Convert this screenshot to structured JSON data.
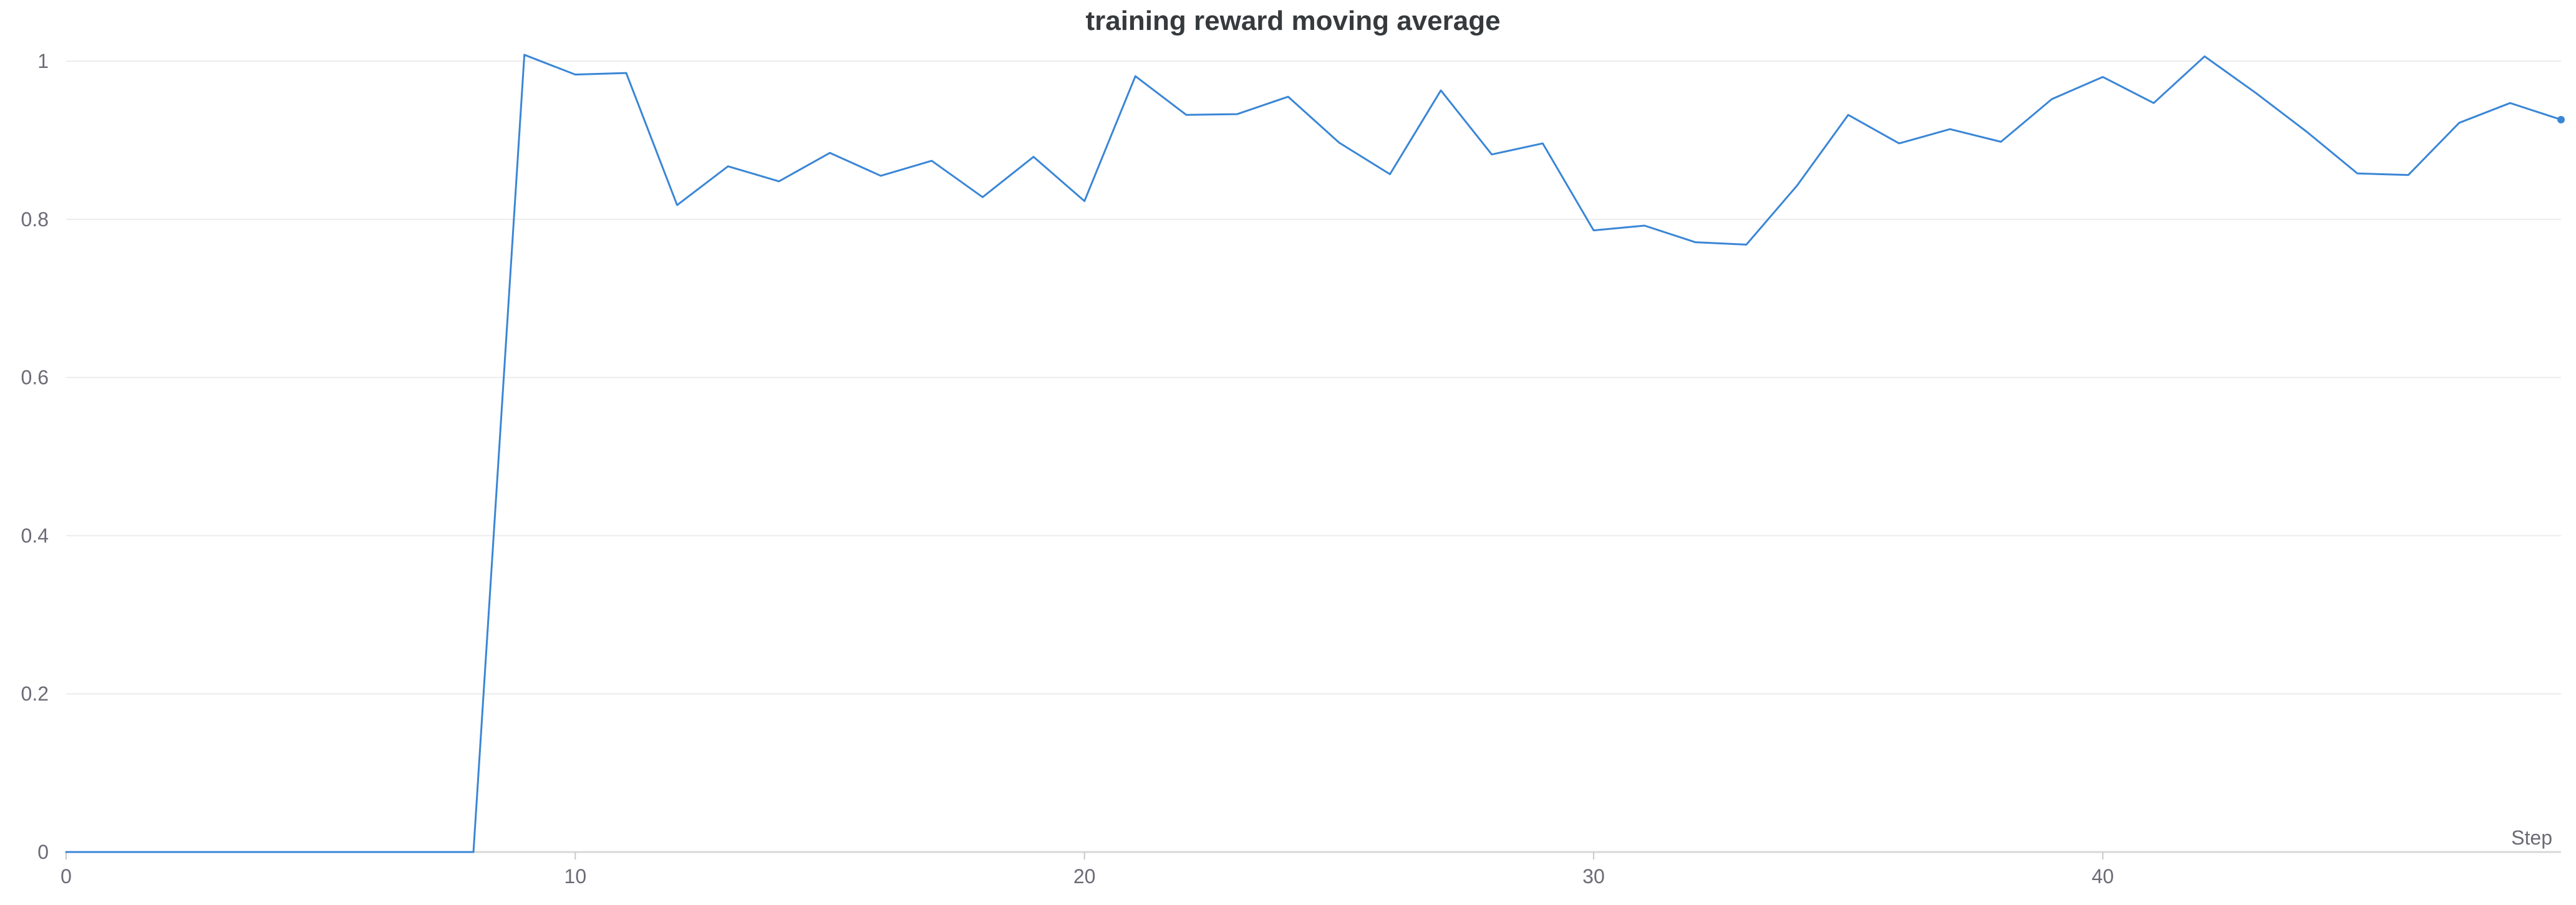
{
  "chart_data": {
    "type": "line",
    "title": "training reward moving average",
    "xlabel": "Step",
    "ylabel": "",
    "xlim": [
      0,
      49
    ],
    "ylim": [
      0,
      1.03
    ],
    "xticks": [
      0,
      10,
      20,
      30,
      40
    ],
    "yticks": [
      0,
      0.2,
      0.4,
      0.6,
      0.8,
      1
    ],
    "ytick_labels": [
      "0",
      "0.2",
      "0.4",
      "0.6",
      "0.8",
      "1"
    ],
    "grid": true,
    "legend": "none",
    "series": [
      {
        "color": "#3a86d6",
        "x": [
          0,
          1,
          2,
          3,
          4,
          5,
          6,
          7,
          8,
          9,
          10,
          11,
          12,
          13,
          14,
          15,
          16,
          17,
          18,
          19,
          20,
          21,
          22,
          23,
          24,
          25,
          26,
          27,
          28,
          29,
          30,
          31,
          32,
          33,
          34,
          35,
          36,
          37,
          38,
          39,
          40,
          41,
          42,
          43,
          44,
          45,
          46,
          47,
          48,
          49
        ],
        "y": [
          0,
          0,
          0,
          0,
          0,
          0,
          0,
          0,
          0,
          1.008,
          0.983,
          0.985,
          0.818,
          0.867,
          0.848,
          0.884,
          0.855,
          0.874,
          0.828,
          0.879,
          0.823,
          0.981,
          0.932,
          0.933,
          0.955,
          0.897,
          0.857,
          0.963,
          0.882,
          0.896,
          0.786,
          0.792,
          0.771,
          0.768,
          0.843,
          0.932,
          0.896,
          0.914,
          0.898,
          0.952,
          0.98,
          0.947,
          1.006,
          0.96,
          0.911,
          0.858,
          0.856,
          0.922,
          0.947,
          0.926
        ]
      }
    ]
  }
}
